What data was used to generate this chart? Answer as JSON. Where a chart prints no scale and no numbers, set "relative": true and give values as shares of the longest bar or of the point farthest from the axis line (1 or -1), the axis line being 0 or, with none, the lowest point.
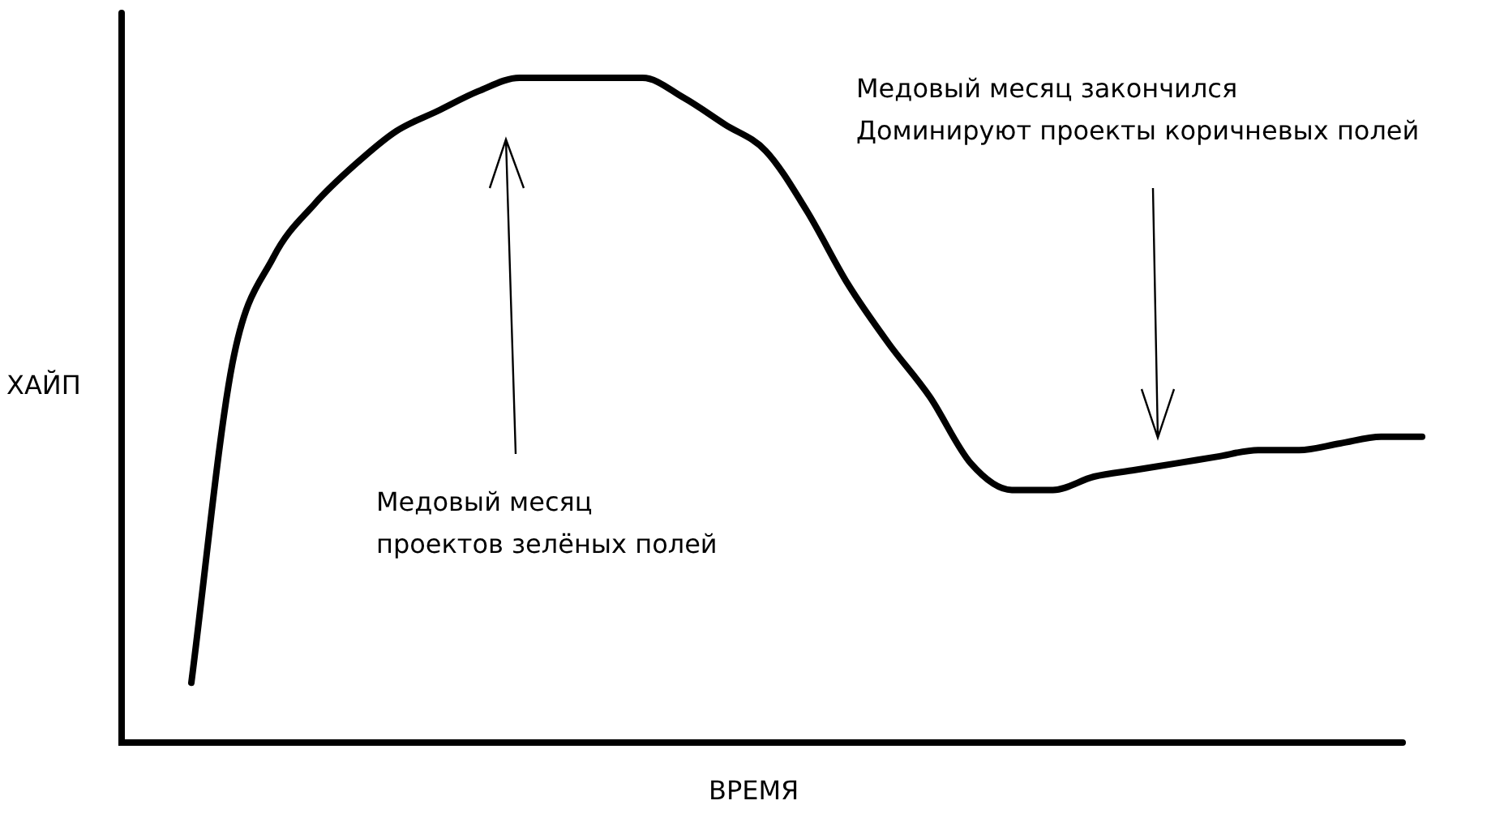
{
  "chart_data": {
    "type": "line",
    "relative": true,
    "xlabel": "ВРЕМЯ",
    "ylabel": "ХАЙП",
    "categories": [
      null,
      null,
      null,
      null,
      null,
      null,
      null,
      null,
      null,
      null,
      null,
      null,
      null,
      null,
      null,
      null,
      null,
      null,
      null,
      null,
      null,
      null,
      null,
      null,
      null,
      null,
      null,
      null,
      null,
      null,
      null
    ],
    "series": [
      {
        "color": "#000000",
        "values": [
          0.09,
          0.57,
          0.73,
          0.81,
          0.87,
          0.92,
          0.95,
          0.98,
          1,
          1,
          1,
          1,
          0.97,
          0.93,
          0.89,
          0.8,
          0.69,
          0.6,
          0.52,
          0.42,
          0.38,
          0.38,
          0.4,
          0.41,
          0.42,
          0.43,
          0.44,
          0.44,
          0.45,
          0.46,
          0.46
        ]
      }
    ],
    "annotations": [
      "Медовый месяц\nпроектов зелёных полей",
      "Медовый месяц закончился\nДоминируют проекты коричневых полей"
    ],
    "legend": false,
    "marker": "none",
    "line_style": "solid"
  }
}
